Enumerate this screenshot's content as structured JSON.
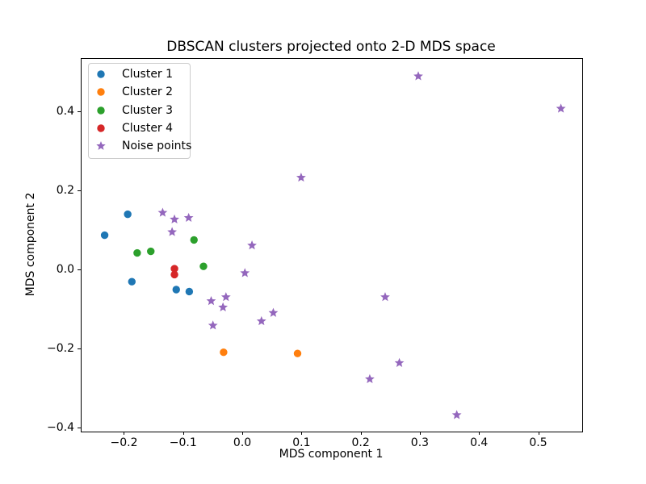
{
  "chart_data": {
    "type": "scatter",
    "title": "DBSCAN clusters projected onto 2-D MDS space",
    "xlabel": "MDS component 1",
    "ylabel": "MDS component 2",
    "xlim": [
      -0.273,
      0.573
    ],
    "ylim": [
      -0.409,
      0.536
    ],
    "xticks": [
      -0.2,
      -0.1,
      0.0,
      0.1,
      0.2,
      0.3,
      0.4,
      0.5
    ],
    "yticks": [
      -0.4,
      -0.2,
      0.0,
      0.2,
      0.4
    ],
    "grid": false,
    "legend_position": "upper left",
    "series": [
      {
        "name": "Cluster 1",
        "marker": "circle",
        "color": "#1f77b4",
        "points": [
          [
            -0.195,
            0.142
          ],
          [
            -0.234,
            0.089
          ],
          [
            -0.188,
            -0.029
          ],
          [
            -0.113,
            -0.049
          ],
          [
            -0.091,
            -0.054
          ]
        ]
      },
      {
        "name": "Cluster 2",
        "marker": "circle",
        "color": "#ff7f0e",
        "points": [
          [
            -0.033,
            -0.208
          ],
          [
            0.092,
            -0.211
          ]
        ]
      },
      {
        "name": "Cluster 3",
        "marker": "circle",
        "color": "#2ca02c",
        "points": [
          [
            -0.083,
            0.077
          ],
          [
            -0.179,
            0.044
          ],
          [
            -0.156,
            0.048
          ],
          [
            -0.067,
            0.01
          ]
        ]
      },
      {
        "name": "Cluster 4",
        "marker": "circle",
        "color": "#d62728",
        "points": [
          [
            -0.116,
            0.004
          ],
          [
            -0.116,
            -0.011
          ]
        ]
      },
      {
        "name": "Noise points",
        "marker": "star",
        "color": "#9467bd",
        "points": [
          [
            -0.136,
            0.146
          ],
          [
            -0.116,
            0.129
          ],
          [
            -0.092,
            0.133
          ],
          [
            -0.12,
            0.097
          ],
          [
            0.296,
            0.492
          ],
          [
            0.537,
            0.41
          ],
          [
            0.098,
            0.235
          ],
          [
            0.015,
            0.063
          ],
          [
            0.003,
            -0.007
          ],
          [
            0.051,
            -0.108
          ],
          [
            0.031,
            -0.129
          ],
          [
            0.24,
            -0.068
          ],
          [
            -0.054,
            -0.078
          ],
          [
            -0.029,
            -0.068
          ],
          [
            -0.034,
            -0.094
          ],
          [
            -0.051,
            -0.14
          ],
          [
            0.264,
            -0.235
          ],
          [
            0.214,
            -0.276
          ],
          [
            0.361,
            -0.367
          ]
        ]
      }
    ]
  }
}
